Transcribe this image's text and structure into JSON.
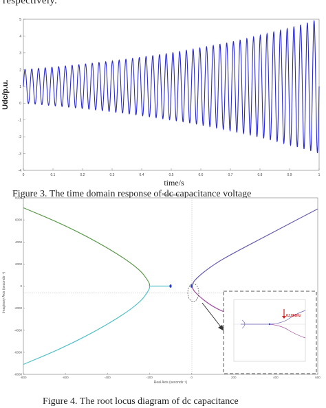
{
  "page": {
    "top_fragment": "respectively.",
    "figure3_caption": "Figure 3. The time domain response of dc capacitance voltage",
    "figure4_caption": "Figure 4. The root locus diagram of dc capacitance"
  },
  "chart_data": [
    {
      "type": "line",
      "title": "",
      "xlabel": "time/s",
      "ylabel": "Udc/p.u.",
      "xlim": [
        0,
        1
      ],
      "ylim": [
        -4,
        5
      ],
      "x_ticks": [
        "0",
        "0.1",
        "0.2",
        "0.3",
        "0.4",
        "0.5",
        "0.6",
        "0.7",
        "0.8",
        "0.9",
        "1"
      ],
      "y_ticks": [
        "5",
        "4",
        "3",
        "2",
        "1",
        "0",
        "-1",
        "-2",
        "-3",
        "-4"
      ],
      "series": [
        {
          "color": "#2a2ad0",
          "description_values": {
            "center": 1.0,
            "amplitude_start": 1.0,
            "amplitude_end": 4.0,
            "cycles": 44
          }
        }
      ],
      "grid": false,
      "legend": "none"
    },
    {
      "type": "scatter",
      "title": "Root Locus",
      "xlabel": "Real Axis (seconds⁻¹)",
      "ylabel": "Imaginary Axis (seconds⁻¹)",
      "xlim": [
        -800,
        600
      ],
      "ylim": [
        -8000,
        8000
      ],
      "x_ticks": [
        "-800",
        "-600",
        "-400",
        "-200",
        "0",
        "200",
        "400",
        "600"
      ],
      "y_ticks": [
        "8000",
        "6000",
        "4000",
        "2000",
        "0",
        "-2000",
        "-4000",
        "-6000",
        "-8000"
      ],
      "branches": [
        {
          "color": "#5a9a4a",
          "points": [
            [
              -800,
              7100
            ],
            [
              -600,
              5500
            ],
            [
              -400,
              3500
            ],
            [
              -250,
              1600
            ],
            [
              -200,
              300
            ],
            [
              -200,
              0
            ]
          ]
        },
        {
          "color": "#4fc0c8",
          "points": [
            [
              -800,
              -7100
            ],
            [
              -600,
              -5500
            ],
            [
              -400,
              -3500
            ],
            [
              -250,
              -1600
            ],
            [
              -200,
              -300
            ],
            [
              -200,
              0
            ]
          ]
        },
        {
          "color": "#4fc0c8",
          "points": [
            [
              -200,
              0
            ],
            [
              -100,
              0
            ]
          ]
        },
        {
          "color": "#6a5ab0",
          "points": [
            [
              0,
              0
            ],
            [
              15,
              600
            ],
            [
              100,
              1900
            ],
            [
              200,
              3000
            ],
            [
              400,
              5000
            ],
            [
              600,
              7000
            ]
          ]
        },
        {
          "color": "#a04aa0",
          "points": [
            [
              0,
              0
            ],
            [
              15,
              -600
            ],
            [
              100,
              -1900
            ],
            [
              200,
              -2700
            ]
          ]
        }
      ],
      "markers": [
        {
          "x": -100,
          "y": 0,
          "color": "#2a3ad0"
        },
        {
          "x": 0,
          "y": 0,
          "color": "#2a3ad0"
        }
      ],
      "inset": {
        "label": "0.1066Hz",
        "label_color": "#d02020"
      },
      "grid": false,
      "legend": "none"
    }
  ]
}
